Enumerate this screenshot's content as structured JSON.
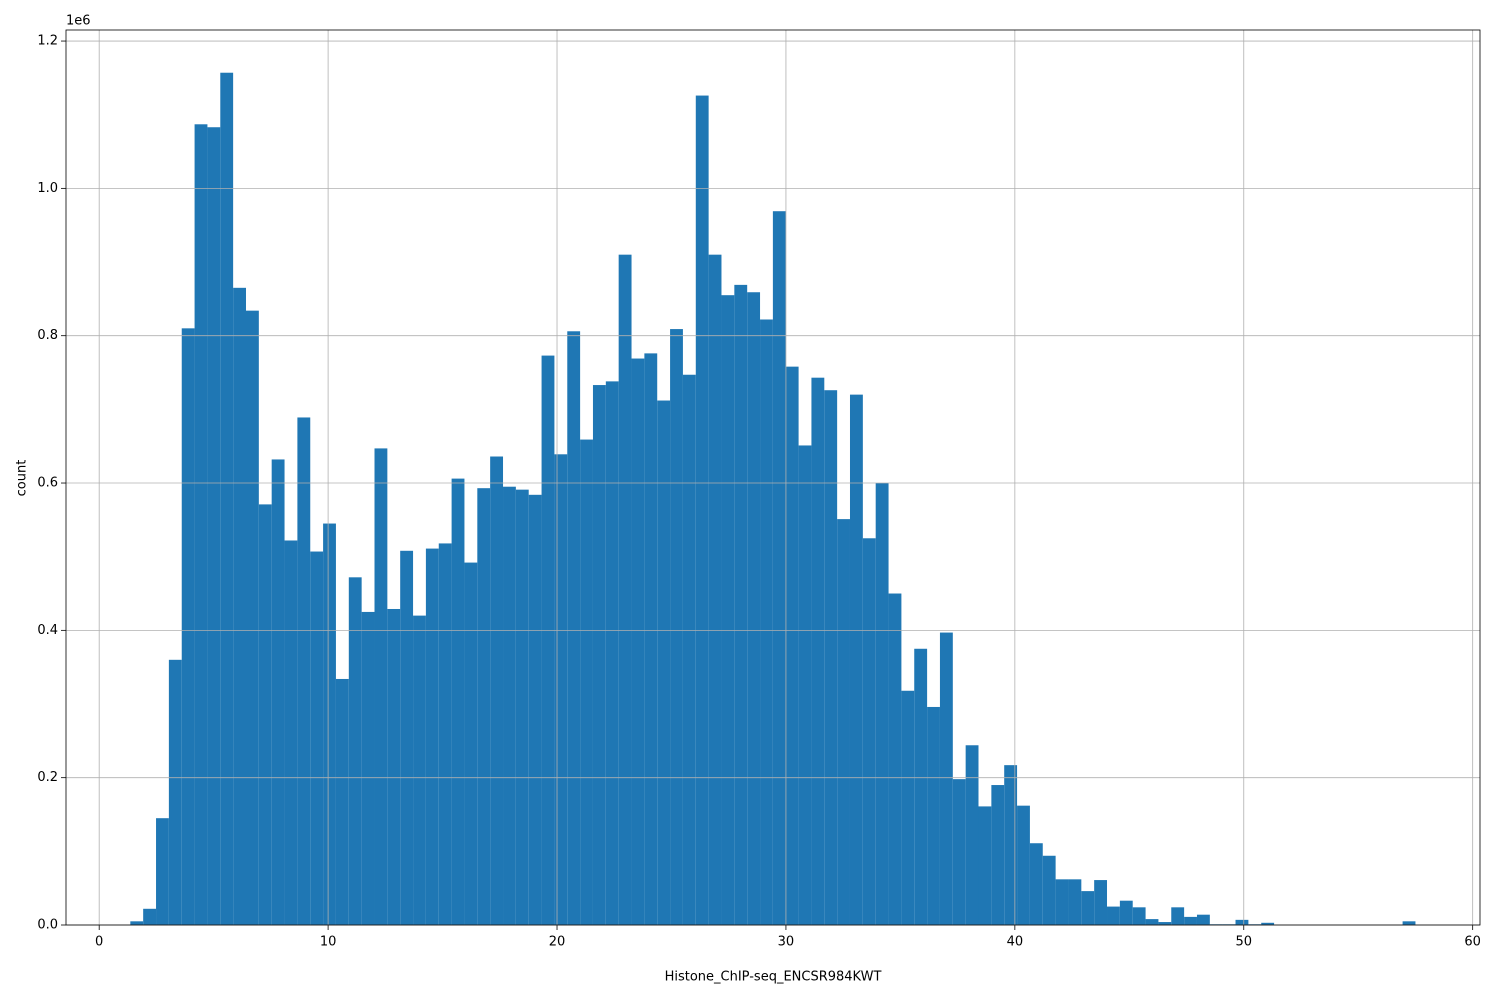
{
  "chart_data": {
    "type": "histogram",
    "x_label": "Histone_ChIP-seq_ENCSR984KWT",
    "y_label": "count",
    "y_offset_label": "1e6",
    "color": "#1f77b4",
    "grid": true,
    "bins": [
      1.36,
      1.921,
      2.483,
      3.044,
      3.606,
      4.167,
      4.728,
      5.29,
      5.851,
      6.413,
      6.974,
      7.535,
      8.097,
      8.658,
      9.22,
      9.781,
      10.342,
      10.904,
      11.465,
      12.027,
      12.588,
      13.149,
      13.711,
      14.272,
      14.834,
      15.395,
      15.956,
      16.518,
      17.079,
      17.641,
      18.202,
      18.763,
      19.325,
      19.886,
      20.448,
      21.009,
      21.57,
      22.132,
      22.693,
      23.255,
      23.816,
      24.377,
      24.939,
      25.5,
      26.062,
      26.623,
      27.184,
      27.746,
      28.307,
      28.869,
      29.43,
      29.991,
      30.553,
      31.114,
      31.676,
      32.237,
      32.798,
      33.36,
      33.921,
      34.483,
      35.044,
      35.605,
      36.167,
      36.728,
      37.29,
      37.851,
      38.412,
      38.974,
      39.535,
      40.097,
      40.658,
      41.219,
      41.781,
      42.342,
      42.904,
      43.465,
      44.026,
      44.588,
      45.149,
      45.711,
      46.272,
      46.833,
      47.395,
      47.956,
      48.518,
      49.079,
      49.64,
      50.202,
      50.763,
      51.325,
      51.886,
      52.447,
      53.009,
      53.57,
      54.132,
      54.693,
      55.254,
      55.816,
      56.377,
      56.939,
      57.5
    ],
    "values": [
      5000,
      22000,
      145000,
      360000,
      810000,
      1087000,
      1083000,
      1157000,
      865000,
      834000,
      571000,
      632000,
      522000,
      689000,
      507000,
      545000,
      334000,
      472000,
      425000,
      647000,
      429000,
      508000,
      420000,
      511000,
      518000,
      606000,
      492000,
      593000,
      636000,
      595000,
      591000,
      584000,
      773000,
      639000,
      806000,
      659000,
      733000,
      738000,
      910000,
      769000,
      776000,
      712000,
      809000,
      747000,
      1126000,
      910000,
      855000,
      869000,
      859000,
      822000,
      969000,
      758000,
      651000,
      743000,
      726000,
      551000,
      720000,
      525000,
      600000,
      450000,
      318000,
      375000,
      296000,
      397000,
      198000,
      244000,
      161000,
      190000,
      217000,
      162000,
      111000,
      94000,
      62000,
      62000,
      46000,
      61000,
      25000,
      33000,
      24000,
      8000,
      4000,
      24000,
      11000,
      14000,
      1000,
      1000,
      7000,
      1000,
      3000,
      0,
      0,
      0,
      0,
      0,
      0,
      0,
      0,
      0,
      0,
      5000
    ],
    "xlim": [
      -1.45,
      60.32
    ],
    "xticks": [
      0,
      10,
      20,
      30,
      40,
      50,
      60
    ],
    "ylim": [
      0,
      1215000
    ],
    "yticks": [
      {
        "value": 0,
        "label": "0.0"
      },
      {
        "value": 200000,
        "label": "0.2"
      },
      {
        "value": 400000,
        "label": "0.4"
      },
      {
        "value": 600000,
        "label": "0.6"
      },
      {
        "value": 800000,
        "label": "0.8"
      },
      {
        "value": 1000000,
        "label": "1.0"
      },
      {
        "value": 1200000,
        "label": "1.2"
      }
    ]
  }
}
